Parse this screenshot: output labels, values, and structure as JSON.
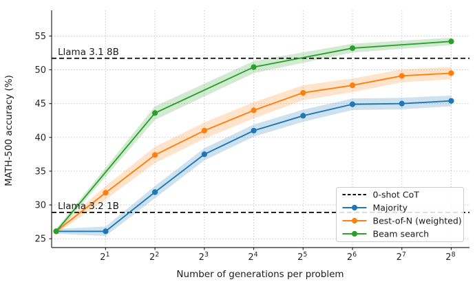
{
  "figure": {
    "background": "#ffffff",
    "grid_color": "#c8c8c8",
    "spine_color": "#262626"
  },
  "chart_data": {
    "type": "line",
    "title": "",
    "xlabel": "Number of generations per problem",
    "ylabel": "MATH-500 accuracy (%)",
    "x_scale": "log2",
    "xlim_log2": [
      -0.093,
      8.37
    ],
    "ylim": [
      23.7,
      58.8
    ],
    "grid": "dotted, both axes, at ticks only",
    "legend_position": "lower right",
    "x_ticks": [
      {
        "base": "2",
        "exp": "1",
        "value": 2
      },
      {
        "base": "2",
        "exp": "2",
        "value": 4
      },
      {
        "base": "2",
        "exp": "3",
        "value": 8
      },
      {
        "base": "2",
        "exp": "4",
        "value": 16
      },
      {
        "base": "2",
        "exp": "5",
        "value": 32
      },
      {
        "base": "2",
        "exp": "6",
        "value": 64
      },
      {
        "base": "2",
        "exp": "7",
        "value": 128
      },
      {
        "base": "2",
        "exp": "8",
        "value": 256
      }
    ],
    "y_ticks": [
      25,
      30,
      35,
      40,
      45,
      50,
      55
    ],
    "series": [
      {
        "name": "Majority",
        "color": "#1f77b4",
        "x": [
          1,
          2,
          4,
          8,
          16,
          32,
          64,
          128,
          256
        ],
        "y": [
          26.1,
          26.1,
          31.9,
          37.5,
          41.0,
          43.2,
          44.9,
          45.0,
          45.4
        ],
        "band_halfwidth": [
          0.35,
          0.7,
          0.9,
          0.9,
          0.9,
          0.9,
          0.85,
          0.85,
          0.8
        ]
      },
      {
        "name": "Best-of-N (weighted)",
        "color": "#ff7f0e",
        "x": [
          1,
          2,
          4,
          8,
          16,
          32,
          64,
          128,
          256
        ],
        "y": [
          26.1,
          31.8,
          37.4,
          41.0,
          44.0,
          46.6,
          47.7,
          49.1,
          49.5
        ],
        "band_halfwidth": [
          0.35,
          1.0,
          1.2,
          1.2,
          1.2,
          1.1,
          1.0,
          0.95,
          0.9
        ]
      },
      {
        "name": "Beam search",
        "color": "#2ca02c",
        "x": [
          1,
          4,
          16,
          64,
          256
        ],
        "y": [
          26.1,
          43.6,
          50.4,
          53.2,
          54.2
        ],
        "band_halfwidth": [
          0.35,
          1.0,
          0.9,
          0.65,
          0.55
        ]
      }
    ],
    "baselines": [
      {
        "label": "Llama 3.1 8B",
        "value": 51.7,
        "color": "#000000",
        "style": "dashed"
      },
      {
        "label": "Llama 3.2 1B",
        "value": 28.9,
        "color": "#000000",
        "style": "dashed"
      }
    ],
    "legend": {
      "entries": [
        {
          "label": "0-shot CoT",
          "style": "dashed",
          "color": "#000000"
        },
        {
          "label": "Majority",
          "style": "line-marker",
          "color": "#1f77b4"
        },
        {
          "label": "Best-of-N (weighted)",
          "style": "line-marker",
          "color": "#ff7f0e"
        },
        {
          "label": "Beam search",
          "style": "line-marker",
          "color": "#2ca02c"
        }
      ]
    }
  }
}
